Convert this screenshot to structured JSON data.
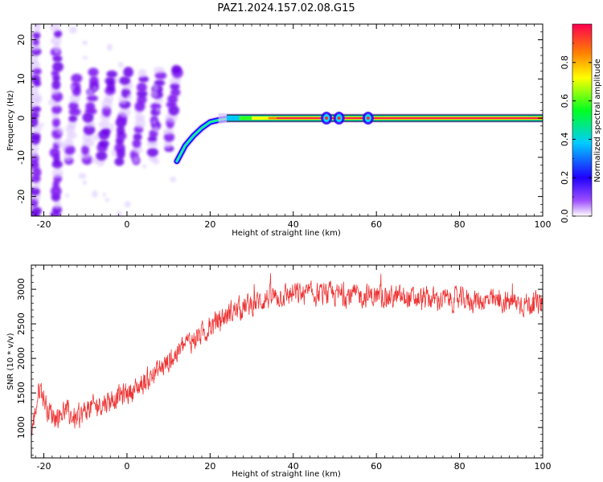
{
  "title": "PAZ1.2024.157.02.08.G15",
  "chart_data": [
    {
      "type": "heatmap",
      "xlabel": "Height of straight line (km)",
      "ylabel": "Frequency (Hz)",
      "xlim": [
        -23,
        100
      ],
      "ylim": [
        -25,
        24
      ],
      "xticks": [
        -20,
        0,
        20,
        40,
        60,
        80,
        100
      ],
      "yticks": [
        -20,
        -10,
        0,
        10,
        20
      ],
      "colorbar": {
        "label": "Normalized spectral amplitude",
        "range": [
          0,
          1
        ],
        "ticks": [
          "0.0",
          "0.2",
          "0.4",
          "0.6",
          "0.8"
        ],
        "colors": [
          "#ffffff",
          "#7f00ff",
          "#0000ff",
          "#00ffff",
          "#00ff00",
          "#ffff00",
          "#ff7f00",
          "#ff0000"
        ]
      },
      "features": {
        "main_line": {
          "x_start": 12,
          "x_end": 100,
          "frequency": 0,
          "amplitude": 0.95
        },
        "curve": [
          [
            12,
            -11
          ],
          [
            13,
            -9
          ],
          [
            14,
            -7
          ],
          [
            16,
            -4.5
          ],
          [
            18,
            -2.5
          ],
          [
            20,
            -1
          ],
          [
            22,
            -0.5
          ],
          [
            25,
            0
          ],
          [
            30,
            0
          ],
          [
            35,
            0
          ]
        ],
        "stripes": [
          {
            "x": -22,
            "f_min": -25,
            "f_max": 24
          },
          {
            "x": -17,
            "f_min": -25,
            "f_max": 24
          },
          {
            "x": -14,
            "f_min": -11,
            "f_max": 10
          },
          {
            "x": -10,
            "f_min": -11,
            "f_max": 11
          },
          {
            "x": -6,
            "f_min": -11,
            "f_max": 12
          },
          {
            "x": -2,
            "f_min": -11,
            "f_max": 12
          },
          {
            "x": 2,
            "f_min": -11,
            "f_max": 12
          },
          {
            "x": 6,
            "f_min": -10,
            "f_max": 12
          },
          {
            "x": 10,
            "f_min": -8,
            "f_max": 12
          }
        ],
        "bumps_x": [
          48,
          51,
          58
        ]
      }
    },
    {
      "type": "line",
      "xlabel": "Height of straight line (km)",
      "ylabel": "SNR (10 * v/v)",
      "xlim": [
        -23,
        100
      ],
      "ylim": [
        560,
        3350
      ],
      "xticks": [
        -20,
        0,
        20,
        40,
        60,
        80,
        100
      ],
      "yticks": [
        1000,
        1500,
        2000,
        2500,
        3000
      ],
      "color": "#ee3333",
      "trend": [
        [
          -23,
          900
        ],
        [
          -21,
          1600
        ],
        [
          -19,
          1250
        ],
        [
          -17,
          1150
        ],
        [
          -15,
          1250
        ],
        [
          -12,
          1100
        ],
        [
          -10,
          1250
        ],
        [
          -6,
          1350
        ],
        [
          -2,
          1450
        ],
        [
          2,
          1550
        ],
        [
          6,
          1750
        ],
        [
          10,
          1950
        ],
        [
          14,
          2200
        ],
        [
          18,
          2350
        ],
        [
          22,
          2550
        ],
        [
          26,
          2700
        ],
        [
          30,
          2780
        ],
        [
          34,
          2880
        ],
        [
          40,
          2930
        ],
        [
          50,
          2920
        ],
        [
          60,
          2900
        ],
        [
          70,
          2860
        ],
        [
          80,
          2850
        ],
        [
          90,
          2820
        ],
        [
          100,
          2780
        ]
      ],
      "noise_amplitude": 160
    }
  ]
}
